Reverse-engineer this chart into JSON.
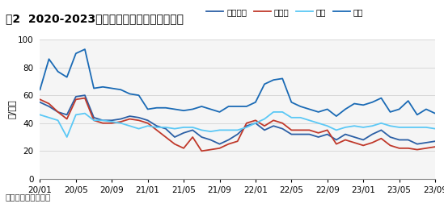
{
  "title": "图2  2020-2023年国内重点分割品价格走势图",
  "ylabel": "元/公斤",
  "source": "数据来源：卓创资讯",
  "yticks": [
    0,
    20,
    40,
    60,
    80,
    100
  ],
  "xtick_labels": [
    "20/01",
    "20/05",
    "20/09",
    "21/01",
    "21/05",
    "21/09",
    "22/01",
    "22/05",
    "22/09",
    "23/01",
    "23/05",
    "23/09"
  ],
  "legend_labels": [
    "去颈前排",
    "二号肉",
    "猪蹄",
    "肋排"
  ],
  "series_colors": [
    "#2b5fa5",
    "#c0392b",
    "#5bc8f5",
    "#1a6ab5"
  ],
  "去颈前排": [
    55,
    52,
    48,
    46,
    59,
    60,
    44,
    42,
    42,
    43,
    45,
    44,
    42,
    38,
    36,
    30,
    33,
    35,
    30,
    28,
    25,
    28,
    32,
    38,
    40,
    35,
    38,
    36,
    32,
    32,
    32,
    30,
    32,
    28,
    32,
    30,
    28,
    32,
    35,
    30,
    28,
    28,
    25,
    26,
    27
  ],
  "二号肉": [
    57,
    54,
    48,
    43,
    57,
    58,
    42,
    40,
    40,
    41,
    43,
    42,
    40,
    35,
    30,
    25,
    22,
    30,
    20,
    21,
    22,
    25,
    27,
    40,
    42,
    38,
    42,
    40,
    35,
    35,
    35,
    33,
    35,
    25,
    28,
    26,
    24,
    26,
    29,
    24,
    22,
    22,
    21,
    22,
    23
  ],
  "猪蹄": [
    46,
    44,
    42,
    30,
    46,
    47,
    42,
    42,
    41,
    40,
    38,
    36,
    38,
    37,
    37,
    36,
    37,
    37,
    35,
    34,
    35,
    35,
    35,
    37,
    40,
    43,
    48,
    48,
    44,
    44,
    42,
    40,
    38,
    35,
    37,
    38,
    37,
    38,
    40,
    38,
    37,
    37,
    37,
    37,
    36
  ],
  "肋排": [
    64,
    86,
    77,
    73,
    90,
    93,
    65,
    66,
    65,
    64,
    61,
    60,
    50,
    51,
    51,
    50,
    49,
    50,
    52,
    50,
    48,
    52,
    52,
    52,
    55,
    68,
    71,
    72,
    55,
    52,
    50,
    48,
    50,
    45,
    50,
    54,
    53,
    55,
    58,
    48,
    50,
    56,
    46,
    50,
    47
  ],
  "bg_color": "#ffffff",
  "title_bg": "#c6d0e0",
  "source_bg": "#e8e8e8",
  "plot_bg": "#f5f5f5",
  "grid_color": "#cccccc",
  "title_fontsize": 10,
  "label_fontsize": 8,
  "tick_fontsize": 7.5
}
